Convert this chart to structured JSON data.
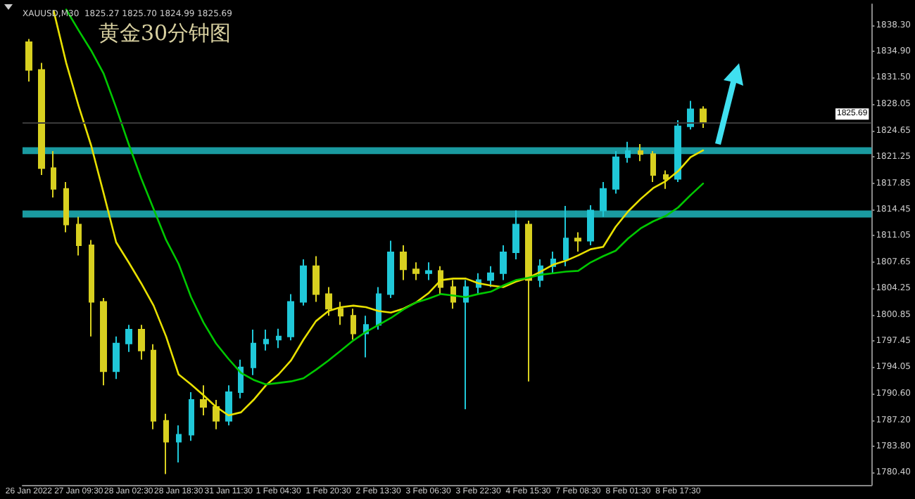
{
  "chart_data": {
    "type": "candlestick",
    "title": "黄金30分钟图",
    "subtitle": "XAUUSD,M30  1825.27 1825.70 1824.99 1825.69",
    "categories": [
      "26 Jan 2022",
      null,
      null,
      null,
      "27 Jan 09:30",
      null,
      null,
      null,
      "28 Jan 02:30",
      null,
      null,
      null,
      "28 Jan 18:30",
      null,
      null,
      null,
      "31 Jan 11:30",
      null,
      null,
      null,
      "1 Feb 04:30",
      null,
      null,
      null,
      "1 Feb 20:30",
      null,
      null,
      null,
      "2 Feb 13:30",
      null,
      null,
      null,
      "3 Feb 06:30",
      null,
      null,
      null,
      "3 Feb 22:30",
      null,
      null,
      null,
      "4 Feb 15:30",
      null,
      null,
      null,
      "7 Feb 08:30",
      null,
      null,
      null,
      "8 Feb 01:30",
      null,
      null,
      null,
      "8 Feb 17:30",
      null,
      null,
      null,
      null,
      null,
      null,
      null,
      null,
      null,
      null,
      null,
      null,
      null,
      null,
      null
    ],
    "series": [
      {
        "type": "candlestick",
        "ohlc": [
          [
            1836.1,
            1836.5,
            1831.0,
            1832.5
          ],
          [
            1832.5,
            1833.4,
            1818.9,
            1819.8
          ],
          [
            1819.8,
            1822.0,
            1816.0,
            1817.1
          ],
          [
            1817.1,
            1818.0,
            1811.5,
            1812.5
          ],
          [
            1812.5,
            1813.5,
            1808.5,
            1809.8
          ],
          [
            1809.8,
            1810.5,
            1798.0,
            1802.5
          ],
          [
            1802.5,
            1803.0,
            1791.7,
            1793.5
          ],
          [
            1793.5,
            1798.0,
            1792.5,
            1797.1
          ],
          [
            1797.1,
            1799.5,
            1796.0,
            1798.9
          ],
          [
            1798.9,
            1799.5,
            1795.0,
            1796.2
          ],
          [
            1796.2,
            1797.0,
            1786.0,
            1787.1
          ],
          [
            1787.1,
            1788.0,
            1780.2,
            1784.4
          ],
          [
            1784.4,
            1786.5,
            1781.7,
            1785.3
          ],
          [
            1785.3,
            1790.8,
            1784.5,
            1789.8
          ],
          [
            1789.8,
            1791.7,
            1787.8,
            1788.9
          ],
          [
            1788.9,
            1789.8,
            1786.0,
            1787.1
          ],
          [
            1787.1,
            1791.7,
            1786.5,
            1790.8
          ],
          [
            1790.8,
            1795.0,
            1790.0,
            1794.0
          ],
          [
            1794.0,
            1798.9,
            1793.0,
            1797.1
          ],
          [
            1797.1,
            1798.9,
            1796.2,
            1797.6
          ],
          [
            1797.6,
            1799.0,
            1796.5,
            1798.0
          ],
          [
            1798.0,
            1803.5,
            1797.5,
            1802.5
          ],
          [
            1802.5,
            1808.0,
            1802.0,
            1807.1
          ],
          [
            1807.1,
            1808.4,
            1802.5,
            1803.5
          ],
          [
            1803.5,
            1804.4,
            1800.7,
            1801.6
          ],
          [
            1801.6,
            1802.5,
            1799.5,
            1800.7
          ],
          [
            1800.7,
            1801.6,
            1797.6,
            1798.4
          ],
          [
            1798.4,
            1800.7,
            1795.3,
            1799.5
          ],
          [
            1799.5,
            1804.4,
            1798.9,
            1803.5
          ],
          [
            1803.5,
            1810.4,
            1803.0,
            1808.9
          ],
          [
            1808.9,
            1809.8,
            1805.3,
            1806.7
          ],
          [
            1806.7,
            1807.6,
            1805.3,
            1806.2
          ],
          [
            1806.2,
            1807.6,
            1805.3,
            1806.5
          ],
          [
            1806.5,
            1807.1,
            1803.5,
            1804.4
          ],
          [
            1804.4,
            1805.3,
            1801.6,
            1802.5
          ],
          [
            1802.5,
            1805.3,
            1788.6,
            1804.4
          ],
          [
            1804.4,
            1806.2,
            1803.5,
            1805.3
          ],
          [
            1805.3,
            1807.1,
            1804.4,
            1806.2
          ],
          [
            1806.2,
            1809.8,
            1805.3,
            1808.9
          ],
          [
            1808.9,
            1814.3,
            1808.0,
            1812.5
          ],
          [
            1812.5,
            1813.0,
            1792.2,
            1805.3
          ],
          [
            1805.3,
            1808.0,
            1804.4,
            1807.1
          ],
          [
            1807.1,
            1809.0,
            1806.2,
            1808.0
          ],
          [
            1808.0,
            1814.9,
            1807.1,
            1810.7
          ],
          [
            1810.7,
            1811.5,
            1809.0,
            1810.4
          ],
          [
            1810.4,
            1815.0,
            1809.8,
            1814.3
          ],
          [
            1814.3,
            1818.0,
            1813.5,
            1817.1
          ],
          [
            1817.1,
            1822.0,
            1816.5,
            1821.2
          ],
          [
            1821.2,
            1823.2,
            1820.5,
            1822.0
          ],
          [
            1822.0,
            1822.9,
            1820.7,
            1821.6
          ],
          [
            1821.6,
            1822.0,
            1818.0,
            1818.9
          ],
          [
            1818.9,
            1819.5,
            1817.1,
            1818.4
          ],
          [
            1818.4,
            1826.0,
            1818.0,
            1825.2
          ],
          [
            1825.2,
            1828.5,
            1824.8,
            1827.4
          ],
          [
            1827.4,
            1827.8,
            1825.0,
            1825.7
          ],
          null,
          null,
          null,
          null,
          null,
          null,
          null,
          null,
          null,
          null,
          null,
          null,
          null
        ],
        "colors": [
          "#d8d020",
          "#d8d020",
          "#d8d020",
          "#d8d020",
          "#d8d020",
          "#d8d020",
          "#d8d020",
          "#20c8d8",
          "#20c8d8",
          "#d8d020",
          "#d8d020",
          "#d8d020",
          "#20c8d8",
          "#20c8d8",
          "#d8d020",
          "#d8d020",
          "#20c8d8",
          "#20c8d8",
          "#20c8d8",
          "#20c8d8",
          "#20c8d8",
          "#20c8d8",
          "#20c8d8",
          "#d8d020",
          "#d8d020",
          "#d8d020",
          "#d8d020",
          "#20c8d8",
          "#20c8d8",
          "#20c8d8",
          "#d8d020",
          "#d8d020",
          "#20c8d8",
          "#d8d020",
          "#d8d020",
          "#20c8d8",
          "#20c8d8",
          "#20c8d8",
          "#20c8d8",
          "#20c8d8",
          "#d8d020",
          "#20c8d8",
          "#20c8d8",
          "#20c8d8",
          "#d8d020",
          "#20c8d8",
          "#20c8d8",
          "#20c8d8",
          "#20c8d8",
          "#d8d020",
          "#d8d020",
          "#d8d020",
          "#20c8d8",
          "#20c8d8",
          "#d8d020",
          null,
          null,
          null,
          null,
          null,
          null,
          null,
          null,
          null,
          null,
          null,
          null,
          null
        ]
      },
      {
        "type": "line",
        "color": "#e8e000",
        "values": [
          null,
          null,
          1840.1,
          1833.4,
          1827.8,
          1822.7,
          1816.5,
          1810.2,
          1807.6,
          1804.9,
          1802.0,
          1798.0,
          1793.1,
          1791.8,
          1790.4,
          1788.9,
          1787.8,
          1788.2,
          1789.8,
          1791.7,
          1793.1,
          1794.9,
          1797.6,
          1800.0,
          1801.3,
          1801.8,
          1802.0,
          1801.8,
          1801.3,
          1801.1,
          1801.6,
          1802.4,
          1803.6,
          1805.3,
          1805.5,
          1805.5,
          1804.9,
          1804.6,
          1804.4,
          1805.1,
          1805.6,
          1806.4,
          1807.3,
          1807.8,
          1808.5,
          1809.3,
          1809.6,
          1812.2,
          1814.2,
          1815.8,
          1817.2,
          1818.1,
          1819.4,
          1821.2,
          1822.1,
          null,
          null,
          null,
          null,
          null,
          null,
          null,
          null,
          null,
          null,
          null,
          null,
          null
        ]
      },
      {
        "type": "line",
        "color": "#00c800",
        "values": [
          null,
          null,
          null,
          1840.3,
          1837.6,
          1835.0,
          1832.0,
          1827.6,
          1822.9,
          1818.5,
          1814.5,
          1810.5,
          1807.4,
          1803.1,
          1799.8,
          1797.1,
          1795.1,
          1793.3,
          1792.4,
          1791.8,
          1792.0,
          1792.2,
          1792.6,
          1793.7,
          1794.9,
          1796.2,
          1797.5,
          1798.6,
          1799.5,
          1800.4,
          1801.5,
          1802.4,
          1802.9,
          1803.5,
          1803.3,
          1803.1,
          1803.5,
          1803.8,
          1804.6,
          1805.3,
          1805.6,
          1806.0,
          1806.2,
          1806.4,
          1806.5,
          1807.6,
          1808.4,
          1809.1,
          1810.7,
          1812.0,
          1812.9,
          1813.6,
          1814.7,
          1816.3,
          1817.8,
          null,
          null,
          null,
          null,
          null,
          null,
          null,
          null,
          null,
          null,
          null,
          null,
          null
        ]
      }
    ],
    "ylim": [
      1778.8,
      1841.0
    ],
    "yticks": [
      {
        "value": 1838.3,
        "label": "1838.30"
      },
      {
        "value": 1834.9,
        "label": "1834.90"
      },
      {
        "value": 1831.5,
        "label": "1831.50"
      },
      {
        "value": 1828.05,
        "label": "1828.05"
      },
      {
        "value": 1824.65,
        "label": "1824.65"
      },
      {
        "value": 1821.25,
        "label": "1821.25"
      },
      {
        "value": 1817.85,
        "label": "1817.85"
      },
      {
        "value": 1814.45,
        "label": "1814.45"
      },
      {
        "value": 1811.05,
        "label": "1811.05"
      },
      {
        "value": 1807.65,
        "label": "1807.65"
      },
      {
        "value": 1804.25,
        "label": "1804.25"
      },
      {
        "value": 1800.85,
        "label": "1800.85"
      },
      {
        "value": 1797.45,
        "label": "1797.45"
      },
      {
        "value": 1794.05,
        "label": "1794.05"
      },
      {
        "value": 1790.6,
        "label": "1790.60"
      },
      {
        "value": 1787.2,
        "label": "1787.20"
      },
      {
        "value": 1783.8,
        "label": "1783.80"
      },
      {
        "value": 1780.4,
        "label": "1780.40"
      }
    ],
    "ref_lines": [
      {
        "axis": "y",
        "value": 1825.69,
        "label": "1825.69",
        "color": "#3a3a3a"
      }
    ],
    "bands": [
      {
        "axis": "y",
        "from": 1821.6,
        "to": 1822.5,
        "color": "#1a9aa0"
      },
      {
        "axis": "y",
        "from": 1813.4,
        "to": 1814.3,
        "color": "#1a9aa0"
      }
    ],
    "grid": false,
    "marker": "none",
    "line_style": "solid"
  }
}
